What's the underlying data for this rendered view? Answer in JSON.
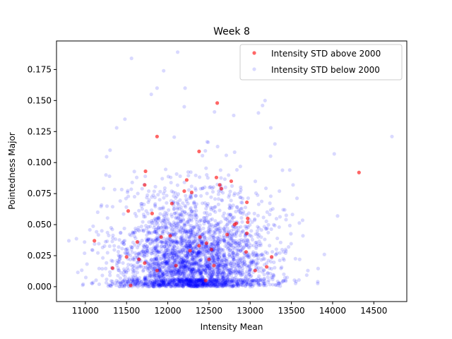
{
  "chart_data": {
    "type": "scatter",
    "title": "Week 8",
    "xlabel": "Intensity Mean",
    "ylabel": "Pointedness Major",
    "xlim": [
      10650,
      14900
    ],
    "ylim": [
      -0.012,
      0.198
    ],
    "xticks": [
      11000,
      11500,
      12000,
      12500,
      13000,
      13500,
      14000,
      14500
    ],
    "xtick_labels": [
      "11000",
      "11500",
      "12000",
      "12500",
      "13000",
      "13500",
      "14000",
      "14500"
    ],
    "yticks": [
      0.0,
      0.025,
      0.05,
      0.075,
      0.1,
      0.125,
      0.15,
      0.175
    ],
    "ytick_labels": [
      "0.000",
      "0.025",
      "0.050",
      "0.075",
      "0.100",
      "0.125",
      "0.150",
      "0.175"
    ],
    "grid": false,
    "legend_position": "top-right",
    "series": [
      {
        "name": "Intensity STD above 2000",
        "color": "#ff0000",
        "alpha": 0.6,
        "points": [
          [
            12600,
            0.148
          ],
          [
            11870,
            0.121
          ],
          [
            12380,
            0.109
          ],
          [
            11730,
            0.093
          ],
          [
            12230,
            0.086
          ],
          [
            11720,
            0.082
          ],
          [
            12630,
            0.082
          ],
          [
            12650,
            0.079
          ],
          [
            12200,
            0.077
          ],
          [
            12290,
            0.076
          ],
          [
            12770,
            0.085
          ],
          [
            12590,
            0.088
          ],
          [
            12050,
            0.067
          ],
          [
            12960,
            0.068
          ],
          [
            11810,
            0.059
          ],
          [
            11520,
            0.061
          ],
          [
            12970,
            0.055
          ],
          [
            12970,
            0.052
          ],
          [
            12810,
            0.05
          ],
          [
            12830,
            0.051
          ],
          [
            12960,
            0.043
          ],
          [
            12720,
            0.042
          ],
          [
            12030,
            0.041
          ],
          [
            11920,
            0.04
          ],
          [
            12390,
            0.04
          ],
          [
            11630,
            0.036
          ],
          [
            11110,
            0.037
          ],
          [
            12470,
            0.035
          ],
          [
            12380,
            0.033
          ],
          [
            12530,
            0.03
          ],
          [
            12270,
            0.029
          ],
          [
            12950,
            0.028
          ],
          [
            11500,
            0.024
          ],
          [
            11650,
            0.022
          ],
          [
            13260,
            0.024
          ],
          [
            12500,
            0.022
          ],
          [
            11720,
            0.019
          ],
          [
            12100,
            0.017
          ],
          [
            12560,
            0.017
          ],
          [
            11330,
            0.015
          ],
          [
            13200,
            0.016
          ],
          [
            11870,
            0.013
          ],
          [
            13060,
            0.013
          ],
          [
            12460,
            0.005
          ],
          [
            11550,
            0.001
          ],
          [
            14320,
            0.092
          ]
        ]
      },
      {
        "name": "Intensity STD below 2000",
        "color": "#0000ff",
        "alpha": 0.15,
        "n_points": 3200,
        "center": [
          12300,
          0.042
        ],
        "spread": [
          480,
          0.032
        ],
        "outliers": [
          [
            10800,
            0.037
          ],
          [
            14720,
            0.121
          ],
          [
            14020,
            0.107
          ],
          [
            14060,
            0.057
          ],
          [
            13520,
            0.082
          ],
          [
            13480,
            0.094
          ],
          [
            13820,
            0.004
          ],
          [
            13700,
            0.013
          ],
          [
            12120,
            0.189
          ],
          [
            11560,
            0.184
          ],
          [
            11950,
            0.174
          ],
          [
            12210,
            0.16
          ],
          [
            11870,
            0.16
          ],
          [
            13180,
            0.15
          ],
          [
            13150,
            0.146
          ],
          [
            11800,
            0.155
          ],
          [
            13640,
            0.041
          ],
          [
            13900,
            0.026
          ],
          [
            13600,
            0.022
          ],
          [
            13430,
            0.03
          ],
          [
            11300,
            0.11
          ],
          [
            11250,
            0.09
          ],
          [
            11200,
            0.045
          ],
          [
            11150,
            0.06
          ],
          [
            13400,
            0.062
          ],
          [
            13300,
            0.115
          ],
          [
            13250,
            0.128
          ],
          [
            11480,
            0.135
          ],
          [
            11380,
            0.128
          ],
          [
            13100,
            0.14
          ],
          [
            12800,
            0.138
          ],
          [
            12200,
            0.145
          ]
        ]
      }
    ]
  }
}
